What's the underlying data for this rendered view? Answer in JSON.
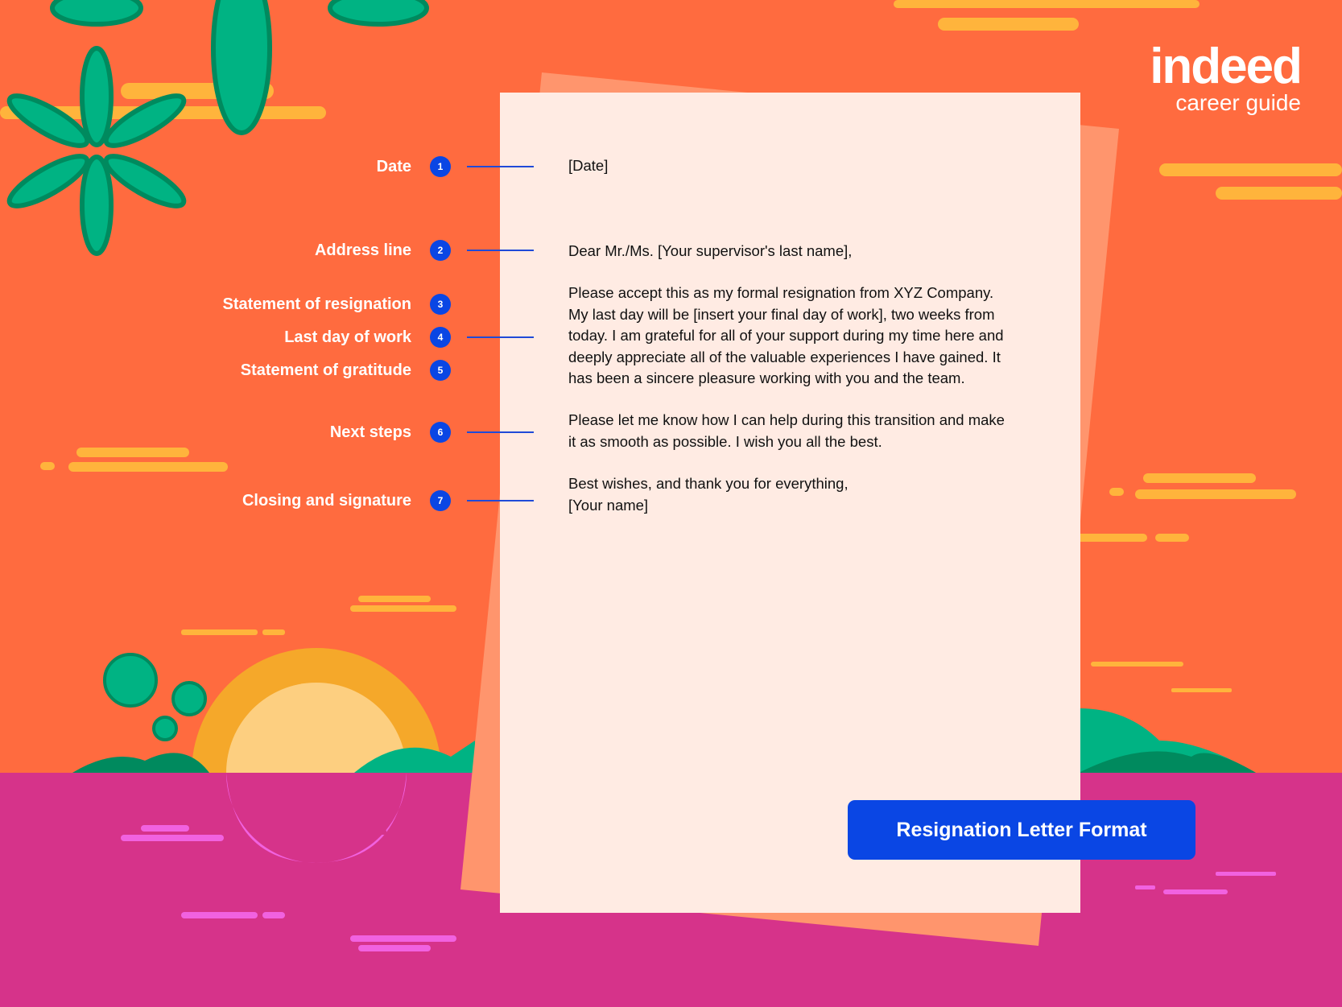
{
  "logo": {
    "brand": "indeed",
    "subtitle": "career guide"
  },
  "annotations": [
    {
      "num": "1",
      "label": "Date"
    },
    {
      "num": "2",
      "label": "Address line"
    },
    {
      "num": "3",
      "label": "Statement of resignation"
    },
    {
      "num": "4",
      "label": "Last day of work"
    },
    {
      "num": "5",
      "label": "Statement of gratitude"
    },
    {
      "num": "6",
      "label": "Next steps"
    },
    {
      "num": "7",
      "label": "Closing and signature"
    }
  ],
  "letter": {
    "date": "[Date]",
    "salutation": "Dear Mr./Ms. [Your supervisor's last name],",
    "body1": [
      "Please accept this as my formal resignation from XYZ Company.",
      "My last day will be [insert your final day of work], two weeks from",
      "today. I am grateful for all of your support during my time here and",
      "deeply appreciate all of the valuable experiences I have gained. It",
      "has been a sincere pleasure working with you and the team."
    ],
    "body2": [
      "Please let me know how I can help during this transition and make",
      "it as smooth as possible. I wish you all the best."
    ],
    "closing": "Best wishes, and thank you for everything,",
    "signature": "[Your name]"
  },
  "cta": {
    "label": "Resignation Letter Format"
  },
  "colors": {
    "background": "#ff6b3f",
    "water": "#d6338a",
    "paper": "#ffebe3",
    "accent": "#0a46e4",
    "cloud": "#ffb43c",
    "leaf": "#00b383"
  }
}
